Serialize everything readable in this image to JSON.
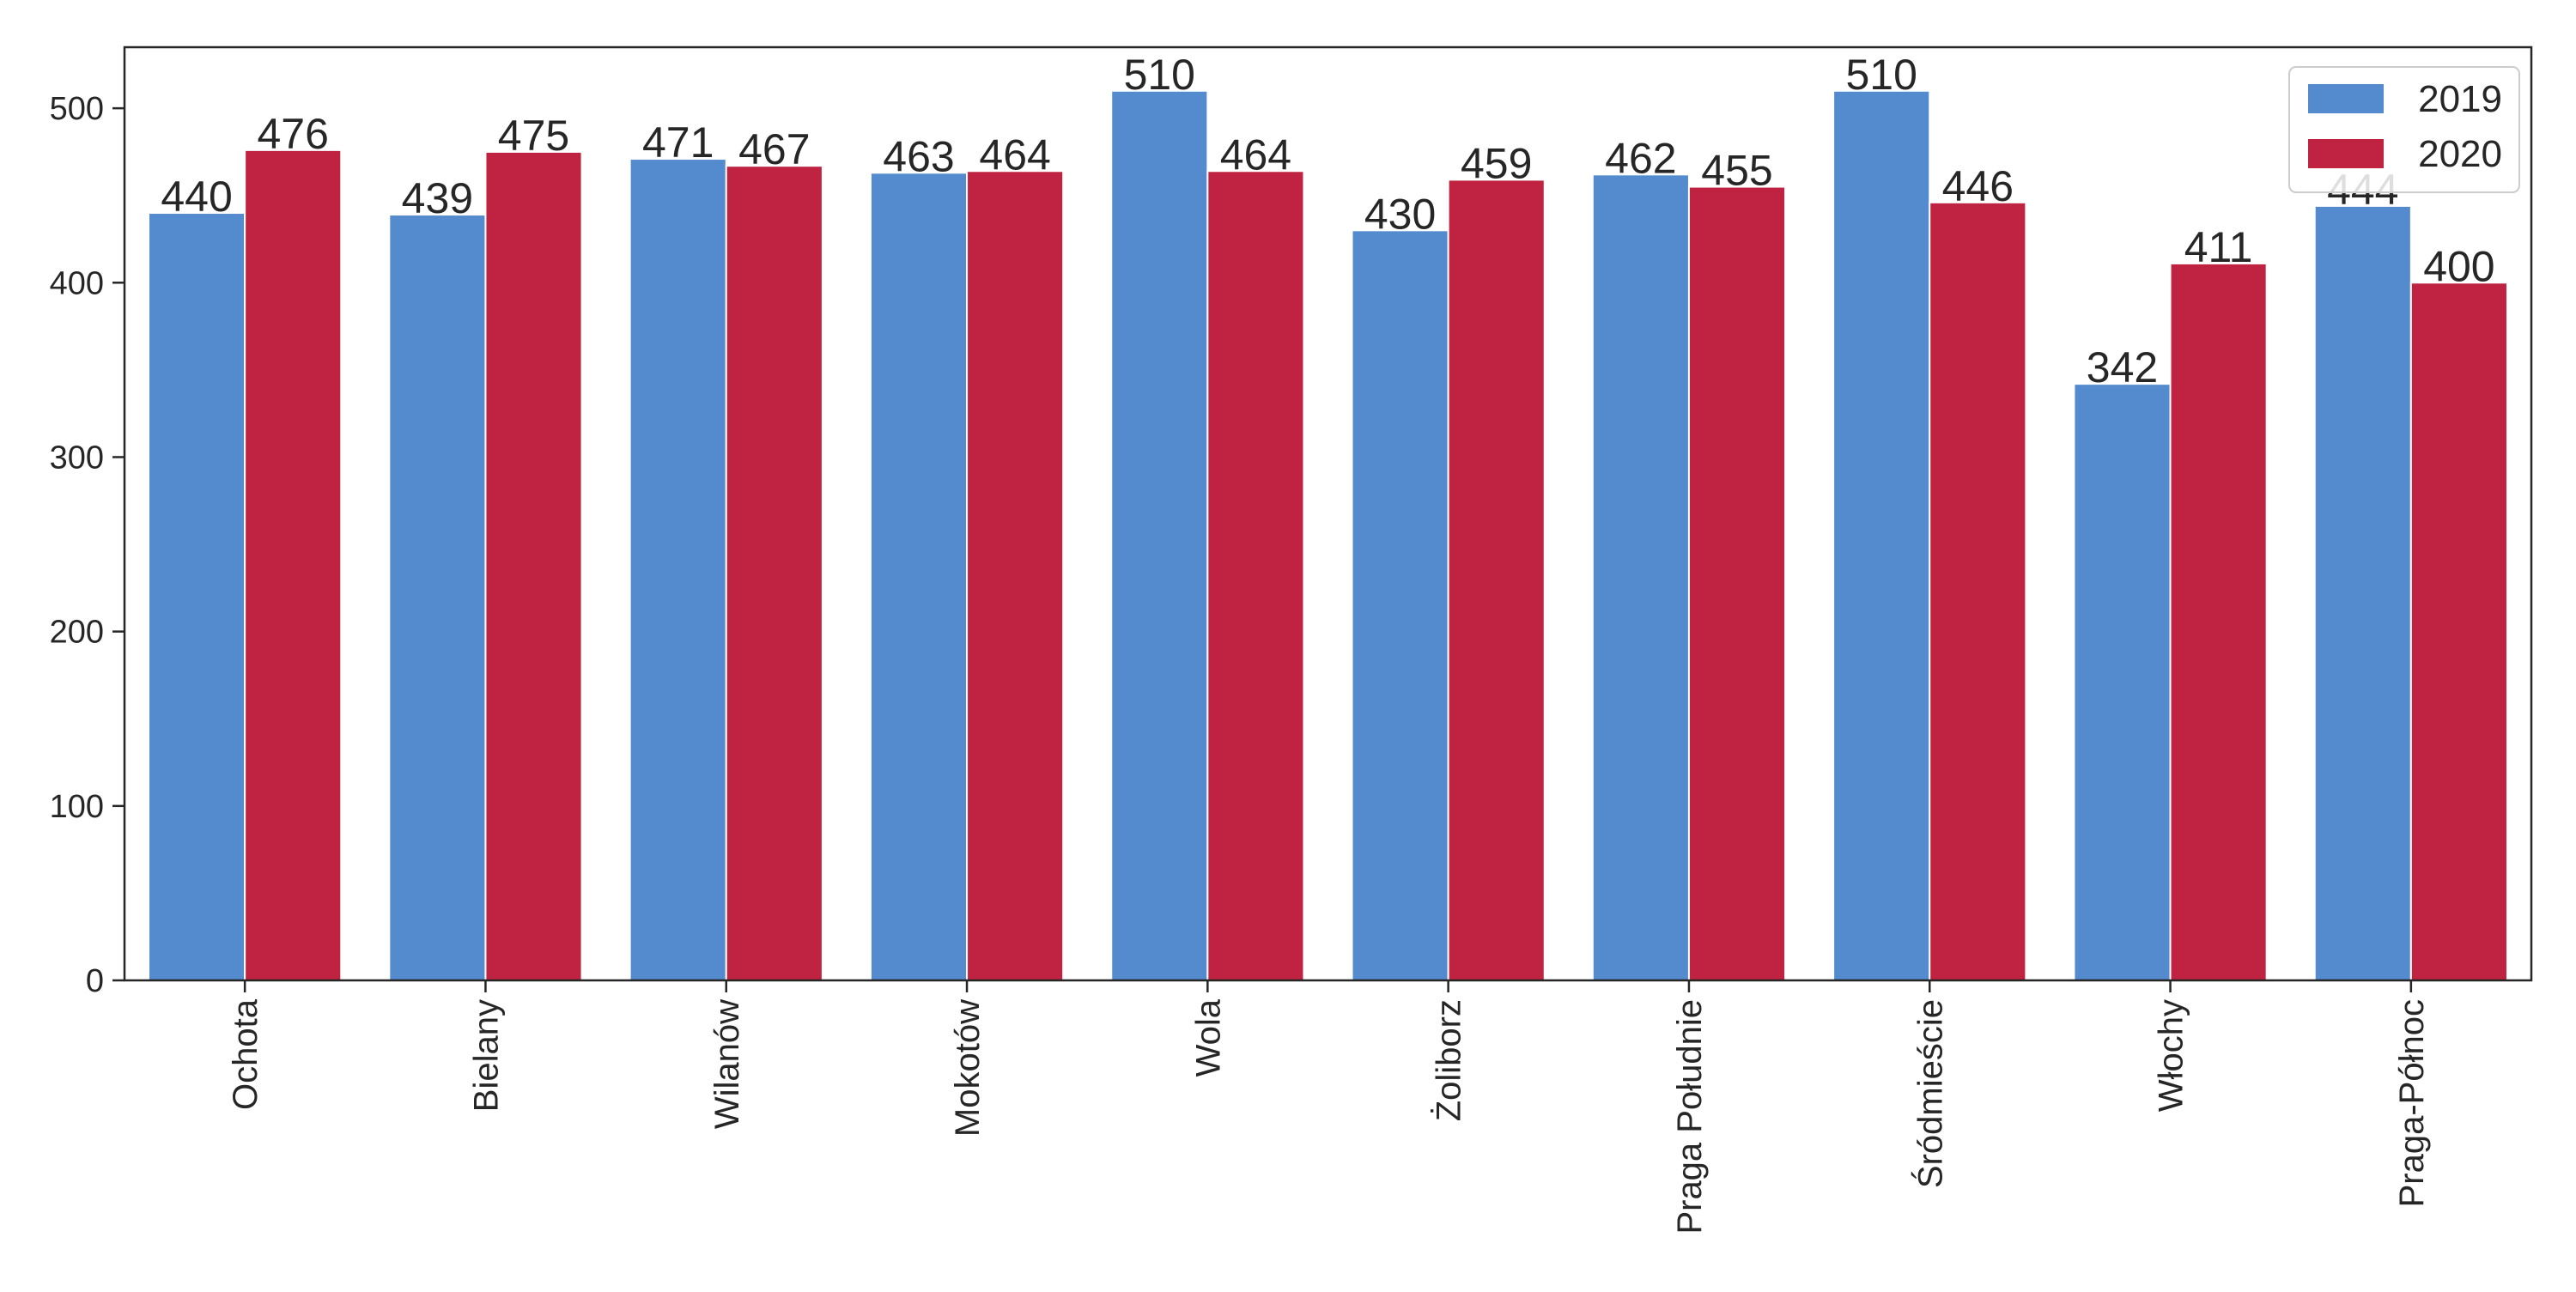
{
  "chart_data": {
    "type": "bar",
    "title": "",
    "xlabel": "",
    "ylabel": "",
    "categories": [
      "Ochota",
      "Bielany",
      "Wilanów",
      "Mokotów",
      "Wola",
      "Żoliborz",
      "Praga Południe",
      "Śródmieście",
      "Włochy",
      "Praga-Północ"
    ],
    "series": [
      {
        "name": "2019",
        "color": "#548BCF",
        "values": [
          440,
          439,
          471,
          463,
          510,
          430,
          462,
          510,
          342,
          444
        ]
      },
      {
        "name": "2020",
        "color": "#C02341",
        "values": [
          476,
          475,
          467,
          464,
          464,
          459,
          455,
          446,
          411,
          400
        ]
      }
    ],
    "ylim": [
      0,
      535
    ],
    "yticks": [
      0,
      100,
      200,
      300,
      400,
      500
    ],
    "grid": false,
    "legend_position": "top-right",
    "x_tick_rotation": 90
  }
}
